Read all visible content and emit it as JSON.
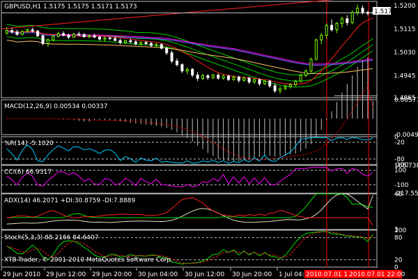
{
  "colors": {
    "background": "#000000",
    "frame": "#c0c0c0",
    "text": "#ffffff",
    "bull_candle": "#7cfc00",
    "bear_candle": "#ffffff",
    "price_line": "#c0c0c0",
    "price_marker_bg": "#ffffff",
    "price_marker_text": "#000000",
    "vline": "#ff0000",
    "level_line": "#c0c0c0",
    "ma_green": "#00d000",
    "ma_red": "#ff2020",
    "ma_magenta": "#ff00ff",
    "ma_blue": "#6a6aff",
    "ma_orange": "#ffc060",
    "macd_hist": "#c0c0c0",
    "macd_signal": "#ff0000",
    "wpr_line": "#00c8ff",
    "cci_line": "#ff00ff",
    "adx_main": "#e0e0c0",
    "adx_plus": "#00e000",
    "adx_minus": "#ff2020",
    "stoch_main": "#00e000",
    "stoch_signal": "#ff2020",
    "highlight_bg": "#ff0000"
  },
  "main": {
    "title": "GBPUSD,H1  1.5175  1.5175  1.5171  1.5173",
    "current_price": "1.5173",
    "axis_labels": [
      "1.5200",
      "1.5115",
      "1.5030",
      "1.4945",
      "1.4865"
    ]
  },
  "macd": {
    "title": "MACD(12,26,9) 0.00534 0.00337",
    "axis_labels": [
      "0.00577",
      "-0.0049"
    ]
  },
  "wpr": {
    "title": "%R(14) -5.1020",
    "axis_labels": [
      "0",
      "-20",
      "-80",
      "-100"
    ]
  },
  "cci": {
    "title": "CCI(6) 66.9317",
    "axis_labels": [
      "168.7385",
      "100",
      "-100",
      "-217.559"
    ]
  },
  "adx": {
    "title": "ADX(14) 46.2071 +DI:30.8759 -DI:7.8889",
    "axis_labels": [
      "48",
      "3"
    ]
  },
  "stoch": {
    "title": "Stoch(5,3,3) 88.2166 84.6407",
    "axis_labels": [
      "100",
      "80",
      "20",
      "0"
    ]
  },
  "watermark": "XTB-Trader, © 2001-2010 MetaQuotes Software Corp.",
  "time_axis": {
    "labels": [
      "29 Jun 2010",
      "29 Jun 12:00",
      "29 Jun 20:00",
      "30 Jun 04:00",
      "30 Jun 12:00",
      "30 Jun 20:00",
      "1 Jul 04:00"
    ],
    "highlights": [
      "2010.07.01 12:00",
      "2010.07.01 22:00"
    ]
  },
  "chart_data": {
    "type": "candlestick",
    "title": "GBPUSD,H1",
    "symbol": "GBPUSD",
    "timeframe": "H1",
    "last_ohlc": {
      "open": 1.5175,
      "high": 1.5175,
      "low": 1.5171,
      "close": 1.5173
    },
    "ylim": [
      1.4865,
      1.5215
    ],
    "yticks": [
      1.52,
      1.5115,
      1.503,
      1.4945,
      1.4865
    ],
    "x_tick_labels": [
      "29 Jun 2010",
      "29 Jun 12:00",
      "29 Jun 20:00",
      "30 Jun 04:00",
      "30 Jun 12:00",
      "30 Jun 20:00",
      "1 Jul 04:00"
    ],
    "marked_times": [
      "2010.07.01 12:00",
      "2010.07.01 22:00"
    ],
    "candles": [
      [
        1.51,
        1.5121,
        1.5093,
        1.5109
      ],
      [
        1.5109,
        1.5119,
        1.5098,
        1.5104
      ],
      [
        1.5104,
        1.5112,
        1.509,
        1.5095
      ],
      [
        1.5095,
        1.511,
        1.5091,
        1.5106
      ],
      [
        1.5106,
        1.5116,
        1.51,
        1.5112
      ],
      [
        1.5112,
        1.512,
        1.5102,
        1.5107
      ],
      [
        1.5107,
        1.5112,
        1.5085,
        1.509
      ],
      [
        1.509,
        1.5094,
        1.5055,
        1.5062
      ],
      [
        1.5062,
        1.5081,
        1.505,
        1.5075
      ],
      [
        1.5075,
        1.5093,
        1.507,
        1.5088
      ],
      [
        1.5088,
        1.5104,
        1.5084,
        1.5098
      ],
      [
        1.5098,
        1.5106,
        1.5088,
        1.5092
      ],
      [
        1.5092,
        1.5098,
        1.5078,
        1.5085
      ],
      [
        1.5085,
        1.5101,
        1.5082,
        1.5096
      ],
      [
        1.5096,
        1.5105,
        1.5089,
        1.5094
      ],
      [
        1.5094,
        1.51,
        1.5082,
        1.5087
      ],
      [
        1.5087,
        1.5094,
        1.508,
        1.509
      ],
      [
        1.509,
        1.5097,
        1.5082,
        1.5085
      ],
      [
        1.5085,
        1.509,
        1.5072,
        1.5078
      ],
      [
        1.5078,
        1.5087,
        1.5068,
        1.5082
      ],
      [
        1.5082,
        1.5088,
        1.5074,
        1.508
      ],
      [
        1.508,
        1.5088,
        1.507,
        1.5073
      ],
      [
        1.5073,
        1.508,
        1.5058,
        1.5065
      ],
      [
        1.5065,
        1.5076,
        1.506,
        1.5072
      ],
      [
        1.5072,
        1.508,
        1.5063,
        1.5068
      ],
      [
        1.5068,
        1.5074,
        1.5056,
        1.506
      ],
      [
        1.506,
        1.507,
        1.5054,
        1.5066
      ],
      [
        1.5066,
        1.5071,
        1.5056,
        1.5062
      ],
      [
        1.5062,
        1.5068,
        1.5048,
        1.5055
      ],
      [
        1.5055,
        1.5064,
        1.5046,
        1.5058
      ],
      [
        1.5058,
        1.5062,
        1.504,
        1.5045
      ],
      [
        1.5045,
        1.505,
        1.502,
        1.5028
      ],
      [
        1.5028,
        1.5036,
        1.499,
        1.4998
      ],
      [
        1.4998,
        1.5008,
        1.4978,
        1.4985
      ],
      [
        1.4985,
        1.499,
        1.4955,
        1.4962
      ],
      [
        1.4962,
        1.4975,
        1.495,
        1.4968
      ],
      [
        1.4968,
        1.4973,
        1.494,
        1.4947
      ],
      [
        1.4947,
        1.4958,
        1.4925,
        1.4935
      ],
      [
        1.4935,
        1.4952,
        1.4928,
        1.4945
      ],
      [
        1.4945,
        1.495,
        1.493,
        1.4938
      ],
      [
        1.4938,
        1.4952,
        1.4932,
        1.4947
      ],
      [
        1.4947,
        1.4953,
        1.493,
        1.4936
      ],
      [
        1.4936,
        1.495,
        1.493,
        1.4944
      ],
      [
        1.4944,
        1.4948,
        1.4925,
        1.4931
      ],
      [
        1.4931,
        1.4946,
        1.4926,
        1.494
      ],
      [
        1.494,
        1.4945,
        1.492,
        1.4928
      ],
      [
        1.4928,
        1.4942,
        1.4922,
        1.4936
      ],
      [
        1.4936,
        1.4941,
        1.4915,
        1.4922
      ],
      [
        1.4922,
        1.4935,
        1.4915,
        1.493
      ],
      [
        1.493,
        1.4936,
        1.4908,
        1.4916
      ],
      [
        1.4916,
        1.493,
        1.491,
        1.4925
      ],
      [
        1.4925,
        1.493,
        1.49,
        1.4908
      ],
      [
        1.4908,
        1.4918,
        1.4882,
        1.489
      ],
      [
        1.489,
        1.4905,
        1.488,
        1.4898
      ],
      [
        1.4898,
        1.4912,
        1.4892,
        1.4905
      ],
      [
        1.4905,
        1.4918,
        1.4898,
        1.4912
      ],
      [
        1.4912,
        1.493,
        1.4906,
        1.4925
      ],
      [
        1.4925,
        1.4952,
        1.492,
        1.4946
      ],
      [
        1.4946,
        1.4968,
        1.494,
        1.4962
      ],
      [
        1.4962,
        1.501,
        1.4955,
        1.5005
      ],
      [
        1.5005,
        1.508,
        1.5,
        1.5075
      ],
      [
        1.5075,
        1.51,
        1.506,
        1.5092
      ],
      [
        1.5092,
        1.5135,
        1.508,
        1.5128
      ],
      [
        1.5128,
        1.515,
        1.5105,
        1.5112
      ],
      [
        1.5112,
        1.514,
        1.51,
        1.5135
      ],
      [
        1.5135,
        1.516,
        1.512,
        1.5152
      ],
      [
        1.5152,
        1.5165,
        1.5128,
        1.5138
      ],
      [
        1.5138,
        1.5182,
        1.5132,
        1.5175
      ],
      [
        1.5175,
        1.5205,
        1.5165,
        1.519
      ],
      [
        1.519,
        1.52,
        1.5168,
        1.5175
      ],
      [
        1.5175,
        1.518,
        1.5165,
        1.5172
      ],
      [
        1.5175,
        1.5175,
        1.5171,
        1.5173
      ]
    ],
    "indicators": {
      "macd": {
        "params": "12,26,9",
        "main": 0.00534,
        "signal": 0.00337,
        "ylim": [
          -0.0049,
          0.00577
        ]
      },
      "wpr": {
        "params": "14",
        "value": -5.102,
        "levels": [
          -20,
          -80
        ],
        "ylim": [
          -100,
          0
        ]
      },
      "cci": {
        "params": "6",
        "value": 66.9317,
        "levels": [
          100,
          -100
        ],
        "ylim": [
          -217.559,
          168.7385
        ]
      },
      "adx": {
        "params": "14",
        "adx": 46.2071,
        "plus_di": 30.8759,
        "minus_di": 7.8889,
        "ylim": [
          3,
          48
        ]
      },
      "stoch": {
        "params": "5,3,3",
        "main": 88.2166,
        "signal": 84.6407,
        "levels": [
          80,
          20
        ],
        "ylim": [
          0,
          100
        ]
      }
    }
  }
}
